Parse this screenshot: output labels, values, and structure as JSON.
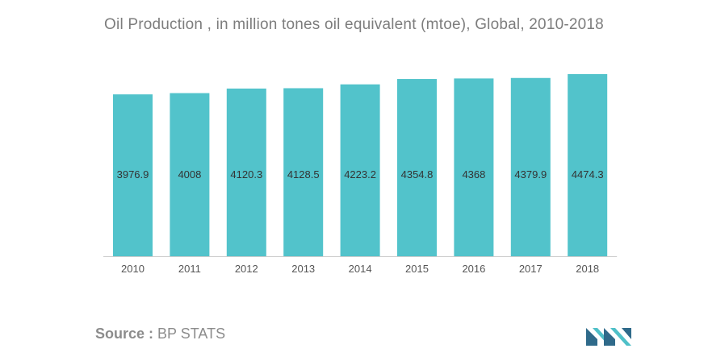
{
  "title": "Oil Production , in million tones oil equivalent (mtoe), Global, 2010-2018",
  "source": {
    "label": "Source :",
    "value": "BP STATS"
  },
  "colors": {
    "bar": "#52c3cb",
    "axis": "#cccccc",
    "label": "#333333",
    "tick": "#555555",
    "logo_dark": "#2f6a8a",
    "logo_teal": "#4fc0c8"
  },
  "chart_data": {
    "type": "bar",
    "title": "Oil Production , in million tones oil equivalent (mtoe), Global, 2010-2018",
    "xlabel": "",
    "ylabel": "",
    "categories": [
      "2010",
      "2011",
      "2012",
      "2013",
      "2014",
      "2015",
      "2016",
      "2017",
      "2018"
    ],
    "values": [
      3976.9,
      4008,
      4120.3,
      4128.5,
      4223.2,
      4354.8,
      4368,
      4379.9,
      4474.3
    ],
    "data_labels": [
      "3976.9",
      "4008",
      "4120.3",
      "4128.5",
      "4223.2",
      "4354.8",
      "4368",
      "4379.9",
      "4474.3"
    ],
    "ylim": [
      0,
      4474.3
    ],
    "grid": false,
    "legend": "none"
  }
}
